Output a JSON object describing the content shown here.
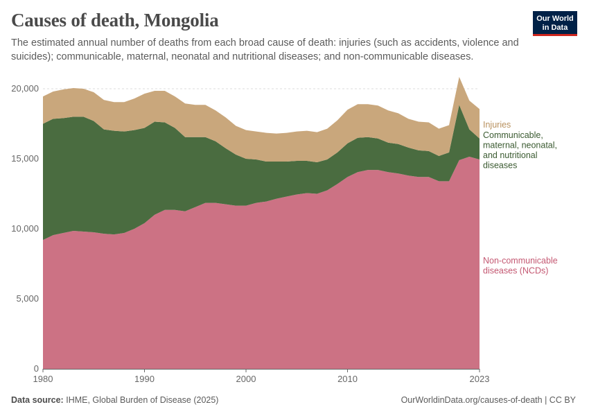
{
  "header": {
    "title": "Causes of death, Mongolia",
    "subtitle": "The estimated annual number of deaths from each broad cause of death: injuries (such as accidents, violence and suicides); communicable, maternal, neonatal and nutritional diseases; and non-communicable diseases."
  },
  "logo": {
    "line1": "Our World",
    "line2": "in Data"
  },
  "footer": {
    "source_label": "Data source:",
    "source_text": "IHME, Global Burden of Disease (2025)",
    "url": "OurWorldinData.org/causes-of-death | CC BY"
  },
  "colors": {
    "ncd": "#cc7284",
    "communicable": "#4a6c40",
    "injuries": "#c9a77c",
    "grid": "#dddddd",
    "axis": "#666666",
    "text": "#666666"
  },
  "chart_data": {
    "type": "area",
    "stacked": true,
    "title": "Causes of death, Mongolia",
    "xlabel": "",
    "ylabel": "",
    "xlim": [
      1980,
      2023
    ],
    "ylim": [
      0,
      20000
    ],
    "yticks": [
      0,
      5000,
      10000,
      15000,
      20000
    ],
    "ytick_labels": [
      "0",
      "5,000",
      "10,000",
      "15,000",
      "20,000"
    ],
    "xticks": [
      1980,
      1990,
      2000,
      2010,
      2023
    ],
    "xtick_labels": [
      "1980",
      "1990",
      "2000",
      "2010",
      "2023"
    ],
    "x": [
      1980,
      1981,
      1982,
      1983,
      1984,
      1985,
      1986,
      1987,
      1988,
      1989,
      1990,
      1991,
      1992,
      1993,
      1994,
      1995,
      1996,
      1997,
      1998,
      1999,
      2000,
      2001,
      2002,
      2003,
      2004,
      2005,
      2006,
      2007,
      2008,
      2009,
      2010,
      2011,
      2012,
      2013,
      2014,
      2015,
      2016,
      2017,
      2018,
      2019,
      2020,
      2021,
      2022,
      2023
    ],
    "series": [
      {
        "name": "Non-communicable diseases (NCDs)",
        "label": "Non-communicable diseases (NCDs)",
        "values": [
          9200,
          9550,
          9700,
          9850,
          9800,
          9750,
          9650,
          9600,
          9700,
          10000,
          10400,
          11000,
          11350,
          11350,
          11250,
          11550,
          11850,
          11850,
          11750,
          11650,
          11650,
          11850,
          11950,
          12150,
          12300,
          12450,
          12550,
          12500,
          12750,
          13200,
          13700,
          14050,
          14200,
          14200,
          14050,
          13950,
          13800,
          13700,
          13700,
          13400,
          13400,
          14900,
          15150,
          14950
        ]
      },
      {
        "name": "Communicable, maternal, neonatal, and nutritional diseases",
        "label": "Communicable, maternal, neonatal, and nutritional diseases",
        "values": [
          8300,
          8300,
          8200,
          8150,
          8200,
          7950,
          7450,
          7400,
          7250,
          7050,
          6800,
          6650,
          6250,
          5850,
          5300,
          5000,
          4700,
          4400,
          4000,
          3650,
          3350,
          3100,
          2850,
          2650,
          2500,
          2400,
          2300,
          2250,
          2200,
          2250,
          2400,
          2450,
          2350,
          2250,
          2100,
          2100,
          2000,
          1900,
          1850,
          1800,
          2050,
          3950,
          1950,
          1500
        ]
      },
      {
        "name": "Injuries",
        "label": "Injuries",
        "values": [
          1950,
          1950,
          2050,
          2050,
          2000,
          2050,
          2100,
          2050,
          2100,
          2250,
          2450,
          2200,
          2250,
          2250,
          2400,
          2300,
          2300,
          2200,
          2200,
          2050,
          2050,
          2000,
          2050,
          2000,
          2050,
          2100,
          2150,
          2150,
          2200,
          2300,
          2400,
          2400,
          2350,
          2350,
          2300,
          2200,
          2050,
          2050,
          2050,
          1950,
          1950,
          2000,
          2050,
          2100
        ]
      }
    ]
  }
}
